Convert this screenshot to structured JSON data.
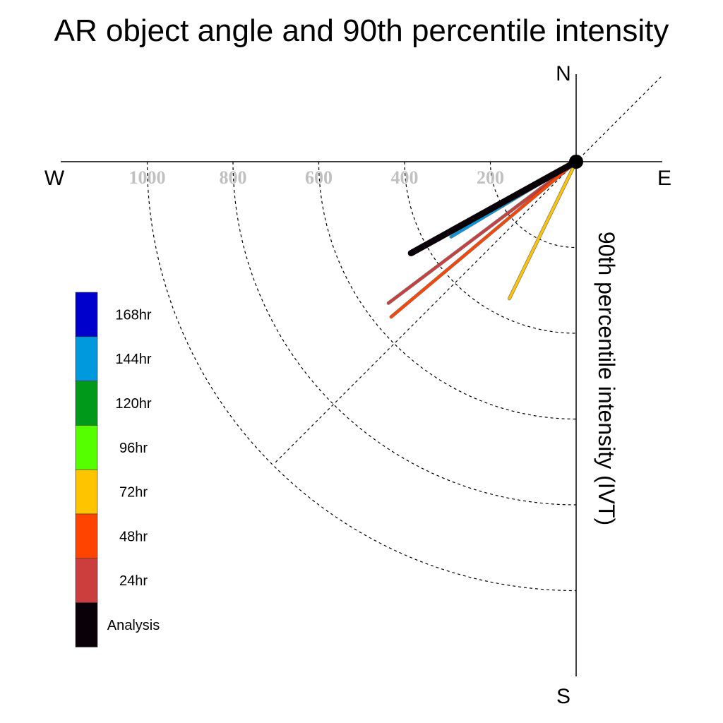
{
  "chart_data": {
    "type": "polar-line",
    "title": "AR object angle and 90th percentile intensity",
    "radial_label": "90th percentile intensity (IVT)",
    "directions": {
      "north": "N",
      "south": "S",
      "west": "W",
      "east": "E"
    },
    "ring_values": [
      200,
      400,
      600,
      800,
      1000
    ],
    "ring_labels": [
      "200",
      "400",
      "600",
      "800",
      "1000"
    ],
    "diagonal_angle_deg": 45,
    "series": [
      {
        "name": "144hr",
        "color": "#0099dd",
        "angle_deg": -31,
        "value": 340
      },
      {
        "name": "24hr",
        "color": "#cc3d3d",
        "angle_deg": -37,
        "value": 548
      },
      {
        "name": "48hr",
        "color": "#ff4400",
        "angle_deg": -40,
        "value": 563
      },
      {
        "name": "72hr",
        "color": "#ffc400",
        "angle_deg": -64,
        "value": 355
      },
      {
        "name": "Analysis",
        "color": "#0a0008",
        "angle_deg": -29,
        "value": 440
      }
    ],
    "legend": [
      {
        "label": "168hr",
        "color": "#0000cc"
      },
      {
        "label": "144hr",
        "color": "#0099dd"
      },
      {
        "label": "120hr",
        "color": "#009919"
      },
      {
        "label": "96hr",
        "color": "#55ff00"
      },
      {
        "label": "72hr",
        "color": "#ffc400"
      },
      {
        "label": "48hr",
        "color": "#ff4400"
      },
      {
        "label": "24hr",
        "color": "#cc3d3d"
      },
      {
        "label": "Analysis",
        "color": "#0a0008"
      }
    ]
  }
}
